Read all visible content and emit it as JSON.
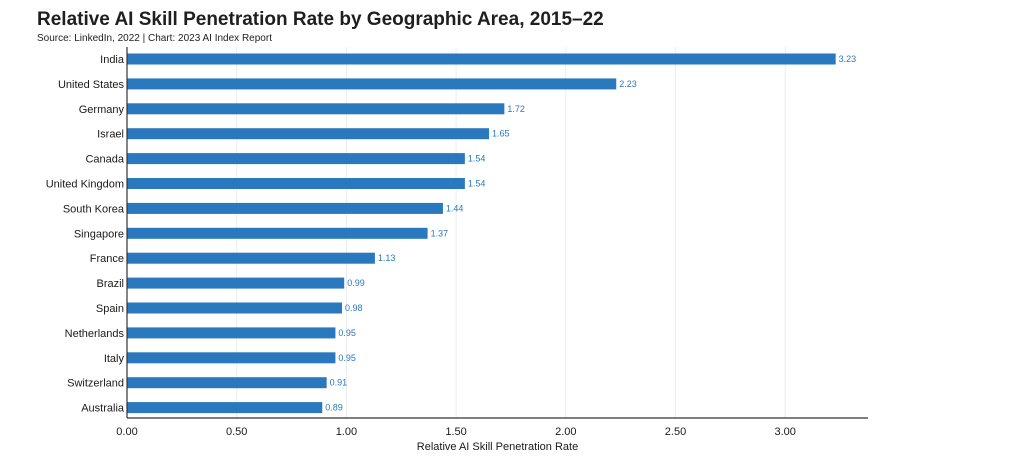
{
  "header": {
    "title": "Relative AI Skill Penetration Rate by Geographic Area, 2015–22",
    "source": "Source: LinkedIn, 2022 | Chart: 2023 AI Index Report"
  },
  "colors": {
    "bar": "#2a79bf",
    "value_label": "#2a79bf",
    "grid": "#ececec",
    "axis": "#333333"
  },
  "chart_data": {
    "type": "bar",
    "orientation": "horizontal",
    "title": "Relative AI Skill Penetration Rate by Geographic Area, 2015–22",
    "subtitle": "Source: LinkedIn, 2022 | Chart: 2023 AI Index Report",
    "xlabel": "Relative AI Skill Penetration Rate",
    "ylabel": "",
    "categories": [
      "India",
      "United States",
      "Germany",
      "Israel",
      "Canada",
      "United Kingdom",
      "South Korea",
      "Singapore",
      "France",
      "Brazil",
      "Spain",
      "Netherlands",
      "Italy",
      "Switzerland",
      "Australia"
    ],
    "values": [
      3.23,
      2.23,
      1.72,
      1.65,
      1.54,
      1.54,
      1.44,
      1.37,
      1.13,
      0.99,
      0.98,
      0.95,
      0.95,
      0.91,
      0.89
    ],
    "value_labels": [
      "3.23",
      "2.23",
      "1.72",
      "1.65",
      "1.54",
      "1.54",
      "1.44",
      "1.37",
      "1.13",
      "0.99",
      "0.98",
      "0.95",
      "0.95",
      "0.91",
      "0.89"
    ],
    "xlim": [
      0,
      3.4
    ],
    "xticks": [
      0,
      0.5,
      1,
      1.5,
      2,
      2.5,
      3
    ],
    "xtick_labels": [
      "0.00",
      "0.50",
      "1.00",
      "1.50",
      "2.00",
      "2.50",
      "3.00"
    ],
    "grid": true,
    "legend": "none"
  }
}
